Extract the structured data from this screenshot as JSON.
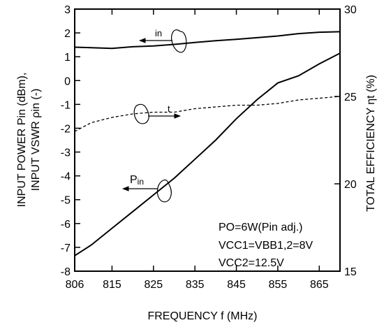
{
  "chart_data": {
    "type": "line",
    "xlabel": "FREQUENCY  f (MHz)",
    "ylabel_left_line1": "INPUT POWER  Pin (dBm),",
    "ylabel_left_line2": "INPUT VSWR  ρin (-)",
    "ylabel_right": "TOTAL EFFICIENCY  ηt (%)",
    "x_ticks": [
      806,
      815,
      825,
      835,
      845,
      855,
      865
    ],
    "xlim": [
      806,
      870
    ],
    "y_left_ticks": [
      3,
      2,
      1,
      0,
      -1,
      -2,
      -3,
      -4,
      -5,
      -6,
      -7,
      -8
    ],
    "ylim_left": [
      -8,
      3
    ],
    "y_right_ticks": [
      30,
      25,
      20,
      15
    ],
    "ylim_right": [
      15,
      30
    ],
    "grid": false,
    "series": [
      {
        "name": "ρin",
        "axis": "left",
        "style": "solid",
        "x": [
          806,
          810,
          815,
          820,
          825,
          830,
          835,
          840,
          845,
          850,
          855,
          860,
          865,
          870
        ],
        "y": [
          1.4,
          1.38,
          1.35,
          1.42,
          1.45,
          1.52,
          1.6,
          1.67,
          1.73,
          1.8,
          1.87,
          1.97,
          2.03,
          2.05
        ]
      },
      {
        "name": "ηt",
        "axis": "right",
        "style": "dashed",
        "x": [
          806,
          810,
          815,
          820,
          825,
          830,
          835,
          840,
          845,
          850,
          855,
          860,
          865,
          870
        ],
        "y": [
          23.0,
          23.5,
          23.8,
          24.0,
          24.1,
          24.1,
          24.3,
          24.4,
          24.5,
          24.5,
          24.6,
          24.8,
          24.9,
          25.0
        ]
      },
      {
        "name": "Pin",
        "axis": "left",
        "style": "solid",
        "x": [
          806,
          810,
          815,
          820,
          825,
          830,
          835,
          840,
          845,
          850,
          855,
          860,
          865,
          870
        ],
        "y": [
          -7.35,
          -6.9,
          -6.2,
          -5.5,
          -4.8,
          -4.1,
          -3.3,
          -2.5,
          -1.6,
          -0.8,
          -0.1,
          0.2,
          0.7,
          1.15
        ]
      }
    ],
    "annotations": {
      "in_label": "in",
      "t_label": "t",
      "pin_label_main": "P",
      "pin_label_sub": "in",
      "conditions": [
        "PO=6W(Pin adj.)",
        "VCC1=VBB1,2=8V",
        "VCC2=12.5V"
      ]
    }
  }
}
